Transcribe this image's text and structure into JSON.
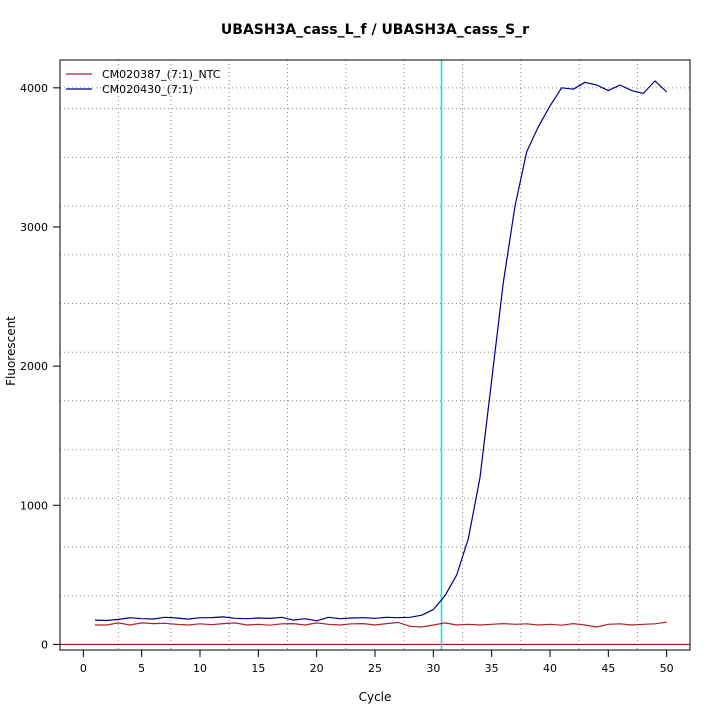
{
  "chart_data": {
    "type": "line",
    "title": "UBASH3A_cass_L_f / UBASH3A_cass_S_r",
    "xlabel": "Cycle",
    "ylabel": "Fluorescent",
    "xlim": [
      -2,
      52
    ],
    "ylim": [
      -40,
      4200
    ],
    "x_ticks": [
      0,
      5,
      10,
      15,
      20,
      25,
      30,
      35,
      40,
      45,
      50
    ],
    "y_ticks": [
      0,
      1000,
      2000,
      3000,
      4000
    ],
    "x_grid": [
      3,
      7.5,
      12.5,
      17.5,
      22.5,
      27.5,
      32.5,
      37.5,
      42.5,
      47.5
    ],
    "y_grid": [
      350,
      700,
      1050,
      1400,
      1750,
      2100,
      2450,
      2800,
      3150,
      3500,
      3850,
      4000
    ],
    "grid": true,
    "legend_position": "top-left",
    "threshold": {
      "x": 30.7,
      "color": "#00e5ee"
    },
    "baseline": {
      "y": 0,
      "color": "#8b0000"
    },
    "x": [
      1,
      2,
      3,
      4,
      5,
      6,
      7,
      8,
      9,
      10,
      11,
      12,
      13,
      14,
      15,
      16,
      17,
      18,
      19,
      20,
      21,
      22,
      23,
      24,
      25,
      26,
      27,
      28,
      29,
      30,
      31,
      32,
      33,
      34,
      35,
      36,
      37,
      38,
      39,
      40,
      41,
      42,
      43,
      44,
      45,
      46,
      47,
      48,
      49,
      50
    ],
    "series": [
      {
        "name": "CM020387_(7:1)_NTC",
        "color": "#b22222",
        "values": [
          140,
          140,
          155,
          140,
          155,
          150,
          152,
          145,
          140,
          148,
          142,
          150,
          155,
          140,
          145,
          138,
          148,
          150,
          140,
          155,
          145,
          140,
          148,
          150,
          140,
          150,
          158,
          130,
          125,
          140,
          155,
          140,
          145,
          140,
          145,
          150,
          145,
          148,
          140,
          145,
          138,
          150,
          140,
          125,
          145,
          148,
          140,
          145,
          148,
          160
        ]
      },
      {
        "name": "CM020430_(7:1)",
        "color": "#00008b",
        "values": [
          175,
          172,
          180,
          192,
          185,
          183,
          195,
          190,
          182,
          192,
          193,
          198,
          188,
          185,
          190,
          187,
          195,
          175,
          185,
          170,
          195,
          185,
          190,
          192,
          188,
          195,
          192,
          195,
          210,
          250,
          350,
          500,
          760,
          1200,
          1900,
          2600,
          3150,
          3540,
          3720,
          3870,
          4000,
          3990,
          4040,
          4020,
          3980,
          4020,
          3980,
          3960,
          4050,
          3970
        ]
      }
    ]
  }
}
